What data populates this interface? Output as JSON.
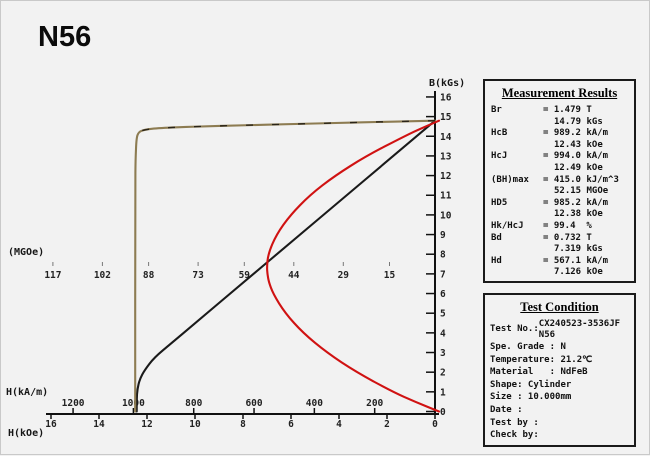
{
  "title": "N56",
  "chart_data": {
    "type": "line",
    "title": "N56",
    "grid": false,
    "legend": false,
    "axes": {
      "b_axis": {
        "label": "B(kGs)",
        "min": 0,
        "max": 16,
        "ticks": [
          16,
          15,
          14,
          13,
          12,
          11,
          10,
          9,
          8,
          7,
          6,
          5,
          4,
          3,
          2,
          1,
          0
        ]
      },
      "h_axis_koe": {
        "label": "H(kOe)",
        "min": 0,
        "max": 16,
        "direction": "increases-leftward",
        "ticks": [
          16,
          14,
          12,
          10,
          8,
          6,
          4,
          2,
          0
        ]
      },
      "h_axis_kam": {
        "label": "H(kA/m)",
        "ticks": [
          1200,
          1000,
          800,
          600,
          400,
          200
        ]
      },
      "bh_axis_mgoe": {
        "label": "(MGOe)",
        "ticks": [
          117,
          102,
          88,
          73,
          59,
          44,
          29,
          15
        ]
      }
    },
    "series": [
      {
        "name": "normal-demagnetization-curve-B(H)",
        "color": "#1a1a1a",
        "x_axis": "kOe",
        "points": [
          [
            0,
            14.79
          ],
          [
            2,
            12.73
          ],
          [
            4,
            10.67
          ],
          [
            6,
            8.61
          ],
          [
            8,
            6.55
          ],
          [
            10,
            4.49
          ],
          [
            11,
            3.46
          ],
          [
            11.7,
            2.74
          ],
          [
            12.1,
            2.1
          ],
          [
            12.3,
            1.65
          ],
          [
            12.4,
            1.15
          ],
          [
            12.43,
            0.6
          ],
          [
            12.43,
            0
          ]
        ]
      },
      {
        "name": "intrinsic-curve-J(H)",
        "color": "#8d7c52",
        "x_axis": "kOe",
        "points": [
          [
            0,
            14.79
          ],
          [
            2,
            14.74
          ],
          [
            4,
            14.68
          ],
          [
            6,
            14.62
          ],
          [
            8,
            14.56
          ],
          [
            10,
            14.49
          ],
          [
            11.5,
            14.42
          ],
          [
            12.1,
            14.34
          ],
          [
            12.35,
            14.22
          ],
          [
            12.44,
            13.9
          ],
          [
            12.48,
            12.8
          ],
          [
            12.49,
            11.5
          ],
          [
            12.49,
            0
          ]
        ]
      },
      {
        "name": "energy-product-curve-BH",
        "color": "#d01212",
        "x_axis": "MGOe",
        "points": [
          [
            0,
            14.79
          ],
          [
            5.4,
            14.4
          ],
          [
            10.5,
            14
          ],
          [
            22,
            13
          ],
          [
            31.5,
            12
          ],
          [
            39.2,
            11
          ],
          [
            45,
            10
          ],
          [
            49.3,
            9
          ],
          [
            51.8,
            8
          ],
          [
            52.15,
            7.32
          ],
          [
            52.0,
            7.0
          ],
          [
            51.6,
            6.6
          ],
          [
            50.3,
            6
          ],
          [
            46.6,
            5
          ],
          [
            41.2,
            4
          ],
          [
            34,
            3
          ],
          [
            25,
            2
          ],
          [
            14,
            1
          ],
          [
            7.3,
            0.5
          ],
          [
            0,
            0
          ]
        ]
      }
    ]
  },
  "measurement_results": {
    "title": "Measurement Results",
    "rows": [
      {
        "label": "Br",
        "line1": "= 1.479 T",
        "line2": "14.79 kGs"
      },
      {
        "label": "HcB",
        "line1": "= 989.2 kA/m",
        "line2": "12.43 kOe"
      },
      {
        "label": "HcJ",
        "line1": "= 994.0 kA/m",
        "line2": "12.49 kOe"
      },
      {
        "label": "(BH)max",
        "line1": "= 415.0 kJ/m^3",
        "line2": "52.15 MGOe"
      },
      {
        "label": "HD5",
        "line1": "= 985.2 kA/m",
        "line2": "12.38 kOe"
      },
      {
        "label": "Hk/HcJ",
        "line1": "= 99.4  %",
        "line2": ""
      },
      {
        "label": "Bd",
        "line1": "= 0.732 T",
        "line2": "7.319 kGs"
      },
      {
        "label": "Hd",
        "line1": "= 567.1 kA/m",
        "line2": "7.126 kOe"
      }
    ]
  },
  "test_condition": {
    "title": "Test Condition",
    "test_no_label": "Test No.:",
    "test_no_value_line1": "CX240523-3536JF",
    "test_no_value_line2": "N56",
    "lines": [
      "Spe. Grade : N",
      "Temperature: 21.2℃",
      "Material   : NdFeB",
      "Shape: Cylinder",
      "Size : 10.000mm",
      "Date :",
      "Test by :",
      "Check by:"
    ]
  }
}
